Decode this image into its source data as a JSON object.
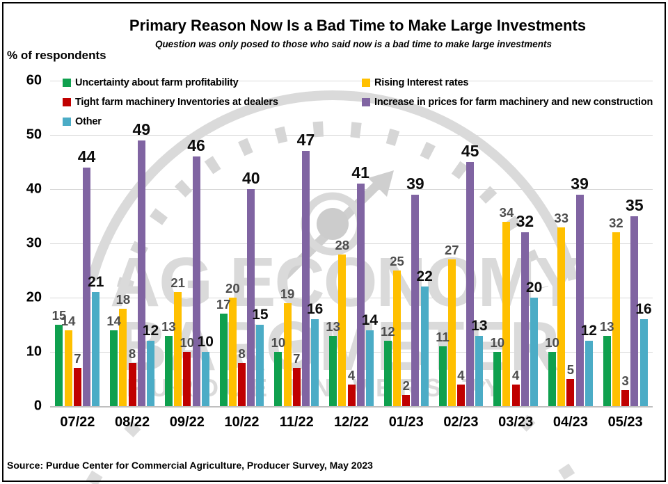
{
  "header": {
    "title": "Primary Reason Now Is a Bad Time to Make Large Investments",
    "subtitle": "Question was only posed to those who said now is a bad time to make large investments"
  },
  "y_axis_label": "% of respondents",
  "source_line": "Source: Purdue Center for Commercial Agriculture, Producer Survey, May 2023",
  "watermark": {
    "line1": "AG ECONOMY",
    "line2": "BAROMETER",
    "line3": "PURDUE UNIVERSITY",
    "gauge_icon": "speedometer-gauge-with-needle",
    "color": "#DADADA"
  },
  "colors": {
    "gridline": "#D9D9D9",
    "axis_baseline": "#BFBFBF",
    "value_label_minor": "#4D4D4D",
    "value_label_major": "#0D0D0D"
  },
  "chart_data": {
    "type": "bar",
    "title": "Primary Reason Now Is a Bad Time to Make Large Investments",
    "subtitle": "Question was only posed to those who said now is a bad time to make large investments",
    "xlabel": "",
    "ylabel": "% of respondents",
    "ylim": [
      0,
      60
    ],
    "yticks": [
      0,
      10,
      20,
      30,
      40,
      50,
      60
    ],
    "grid": true,
    "legend_position": "top-inside-two-columns",
    "categories": [
      "07/22",
      "08/22",
      "09/22",
      "10/22",
      "11/22",
      "12/22",
      "01/23",
      "02/23",
      "03/23",
      "04/23",
      "05/23"
    ],
    "series": [
      {
        "name": "Uncertainty about farm profitability",
        "color": "#0FA04E",
        "values": [
          15,
          14,
          13,
          17,
          10,
          13,
          12,
          11,
          10,
          10,
          13
        ]
      },
      {
        "name": "Rising Interest rates",
        "color": "#FFC000",
        "values": [
          14,
          18,
          21,
          20,
          19,
          28,
          25,
          27,
          34,
          33,
          32
        ]
      },
      {
        "name": "Tight farm machinery Inventories at dealers",
        "color": "#C00000",
        "values": [
          7,
          8,
          10,
          8,
          7,
          4,
          2,
          4,
          4,
          5,
          3
        ]
      },
      {
        "name": "Increase in prices for farm machinery and new construction",
        "color": "#8064A2",
        "values": [
          44,
          49,
          46,
          40,
          47,
          41,
          39,
          45,
          32,
          39,
          35
        ]
      },
      {
        "name": "Other",
        "color": "#4BACC6",
        "values": [
          21,
          12,
          10,
          15,
          16,
          14,
          22,
          13,
          20,
          12,
          16
        ]
      }
    ]
  }
}
